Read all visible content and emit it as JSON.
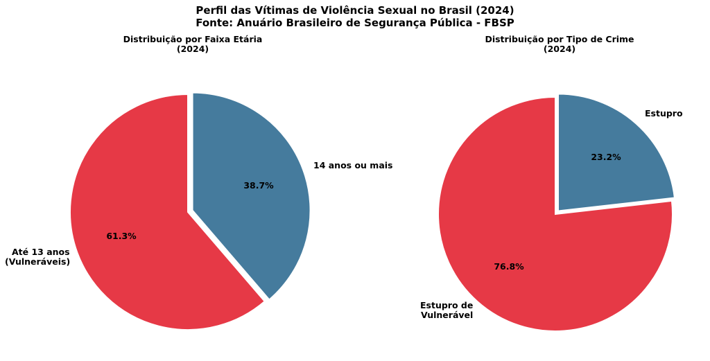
{
  "figure": {
    "title_line1": "Perfil das Vítimas de Violência Sexual no Brasil (2024)",
    "title_line2": "Fonte: Anuário Brasileiro de Segurança Pública - FBSP"
  },
  "chart_data": [
    {
      "type": "pie",
      "title_line1": "Distribuição por Faixa Etária",
      "title_line2": "(2024)",
      "slices": [
        {
          "label_lines": [
            "14 anos ou mais"
          ],
          "value": 38.7,
          "pct_label": "38.7%",
          "color": "#457b9d"
        },
        {
          "label_lines": [
            "Até 13 anos",
            "(Vulneráveis)"
          ],
          "value": 61.3,
          "pct_label": "61.3%",
          "color": "#e63946"
        }
      ]
    },
    {
      "type": "pie",
      "title_line1": "Distribuição por Tipo de Crime",
      "title_line2": "(2024)",
      "slices": [
        {
          "label_lines": [
            "Estupro"
          ],
          "value": 23.2,
          "pct_label": "23.2%",
          "color": "#457b9d"
        },
        {
          "label_lines": [
            "Estupro de",
            "Vulnerável"
          ],
          "value": 76.8,
          "pct_label": "76.8%",
          "color": "#e63946"
        }
      ]
    }
  ]
}
